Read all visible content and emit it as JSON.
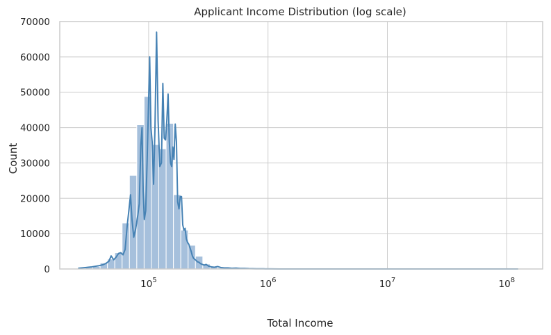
{
  "chart_data": {
    "type": "bar",
    "title": "Applicant Income Distribution (log scale)",
    "xlabel": "Total Income",
    "ylabel": "Count",
    "x_scale": "log",
    "grid": true,
    "xlim": [
      18000,
      200000000
    ],
    "ylim": [
      0,
      70000
    ],
    "x_ticks": [
      {
        "value": 100000,
        "base": "10",
        "exp": "5"
      },
      {
        "value": 1000000,
        "base": "10",
        "exp": "6"
      },
      {
        "value": 10000000,
        "base": "10",
        "exp": "7"
      },
      {
        "value": 100000000,
        "base": "10",
        "exp": "8"
      }
    ],
    "y_ticks": [
      {
        "value": 0,
        "label": "0"
      },
      {
        "value": 10000,
        "label": "10000"
      },
      {
        "value": 20000,
        "label": "20000"
      },
      {
        "value": 30000,
        "label": "30000"
      },
      {
        "value": 40000,
        "label": "40000"
      },
      {
        "value": 50000,
        "label": "50000"
      },
      {
        "value": 60000,
        "label": "60000"
      },
      {
        "value": 70000,
        "label": "70000"
      }
    ],
    "colors": {
      "bar_fill": "#a6c0dc",
      "bar_edge": "#ffffff",
      "kde_line": "#4682b4",
      "grid": "#cccccc",
      "text": "#262626"
    },
    "histogram": {
      "bin_edges": [
        25650,
        29549,
        34040,
        39213,
        45172,
        52037,
        59946,
        69056,
        79551,
        91641,
        105568,
        121612,
        140094,
        161385,
        185912,
        214165,
        246713,
        284207,
        327398,
        377155,
        434474,
        500503,
        576567,
        664192,
        765133,
        881415,
        1015369,
        1169681,
        1347443,
        1552220,
        1788118,
        2059866,
        2372912,
        2733531,
        3148955,
        3627512,
        4178800,
        4813868,
        5545452,
        6388219,
        7359052,
        8477487,
        9765894,
        11250103,
        12959891,
        14929532,
        17198513,
        19812328,
        22823375,
        26291817,
        30287467,
        34890355,
        40192800,
        46301084,
        53337674,
        61443624,
        70781420,
        81538290,
        93929987,
        108205011,
        124649480
      ],
      "counts": [
        200,
        400,
        700,
        1700,
        2800,
        4600,
        13000,
        26500,
        40800,
        48800,
        35200,
        34000,
        41200,
        21000,
        11000,
        6700,
        3600,
        1400,
        600,
        300,
        200,
        200,
        100,
        100,
        100,
        0,
        50,
        50,
        0,
        0,
        0,
        0,
        0,
        0,
        0,
        0,
        0,
        0,
        0,
        0,
        0,
        0,
        0,
        0,
        0,
        0,
        0,
        0,
        0,
        0,
        0,
        0,
        0,
        0,
        0,
        0,
        0,
        0,
        0,
        0
      ]
    },
    "kde": {
      "x": [
        25650,
        29500,
        33500,
        38000,
        41500,
        44000,
        46500,
        48500,
        51000,
        53500,
        56000,
        58500,
        61000,
        63500,
        66000,
        68500,
        70500,
        72500,
        75000,
        78000,
        81000,
        83500,
        86000,
        88000,
        90000,
        92000,
        94500,
        97000,
        99500,
        102000,
        104500,
        107000,
        110000,
        113000,
        116500,
        120000,
        124000,
        128000,
        131500,
        135000,
        138500,
        142000,
        145500,
        149000,
        152500,
        156000,
        159500,
        163000,
        167000,
        171000,
        175000,
        179500,
        184000,
        188500,
        193000,
        197500,
        202000,
        207000,
        212000,
        217000,
        222000,
        227000,
        232000,
        238000,
        244000,
        250000,
        257000,
        264000,
        272000,
        282000,
        292000,
        303000,
        318000,
        336000,
        356000,
        378000,
        403000,
        430000,
        462000,
        498000,
        540000,
        585000,
        635000,
        690000,
        745000,
        800000,
        860000,
        920000,
        985000,
        1050000,
        1250000,
        1700000,
        2500000,
        5000000,
        15000000,
        50000000,
        124649480
      ],
      "y": [
        200,
        400,
        600,
        900,
        1200,
        1600,
        2200,
        3700,
        2600,
        3400,
        4400,
        4600,
        4000,
        5500,
        12000,
        17000,
        21000,
        14000,
        9000,
        11500,
        15000,
        18500,
        35000,
        40000,
        22000,
        14000,
        16500,
        30000,
        45000,
        60000,
        40000,
        36000,
        24000,
        40000,
        67000,
        42000,
        29000,
        30000,
        52500,
        37000,
        36500,
        42000,
        49500,
        36000,
        30000,
        29000,
        34500,
        31000,
        41000,
        36000,
        19000,
        17000,
        20500,
        20500,
        12500,
        11000,
        11500,
        8500,
        7500,
        7000,
        6000,
        5000,
        3800,
        3000,
        2700,
        2400,
        2000,
        1900,
        1500,
        1300,
        1100,
        1300,
        800,
        600,
        500,
        700,
        400,
        300,
        300,
        200,
        250,
        150,
        150,
        100,
        80,
        60,
        50,
        40,
        30,
        20,
        10,
        5,
        0,
        0,
        0,
        0,
        0
      ]
    }
  }
}
